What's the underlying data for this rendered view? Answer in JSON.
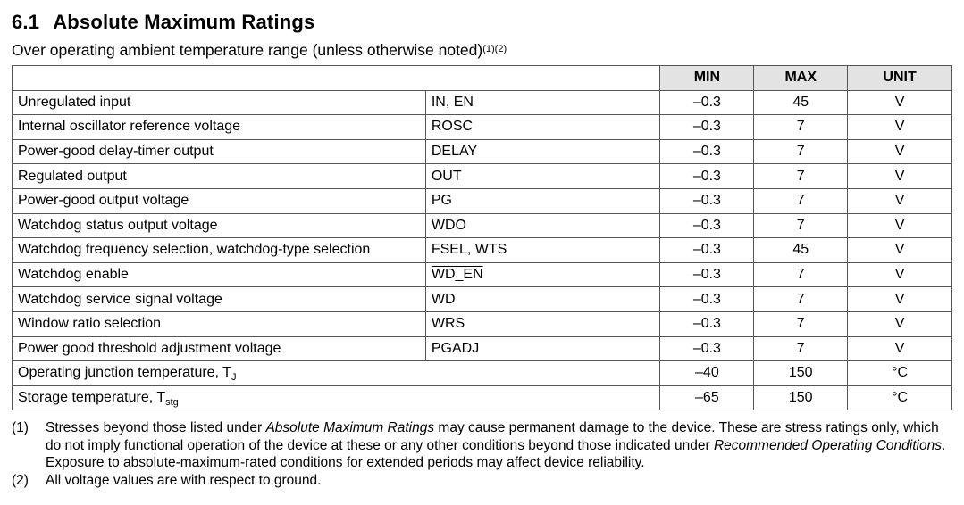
{
  "section": {
    "number": "6.1",
    "title": "Absolute Maximum Ratings",
    "subtitle": "Over operating ambient temperature range (unless otherwise noted)",
    "subtitle_refs": "(1)(2)"
  },
  "table": {
    "headers": {
      "min": "MIN",
      "max": "MAX",
      "unit": "UNIT"
    },
    "rows": [
      {
        "param": "Unregulated input",
        "symbol": "IN, EN",
        "min": "–0.3",
        "max": "45",
        "unit": "V"
      },
      {
        "param": "Internal oscillator reference voltage",
        "symbol": "ROSC",
        "min": "–0.3",
        "max": "7",
        "unit": "V"
      },
      {
        "param": "Power-good delay-timer output",
        "symbol": "DELAY",
        "min": "–0.3",
        "max": "7",
        "unit": "V"
      },
      {
        "param": "Regulated output",
        "symbol": "OUT",
        "min": "–0.3",
        "max": "7",
        "unit": "V"
      },
      {
        "param": "Power-good output voltage",
        "symbol": "PG",
        "min": "–0.3",
        "max": "7",
        "unit": "V"
      },
      {
        "param": "Watchdog status output voltage",
        "symbol": "WDO",
        "min": "–0.3",
        "max": "7",
        "unit": "V"
      },
      {
        "param": "Watchdog frequency selection, watchdog-type selection",
        "symbol": "FSEL, WTS",
        "min": "–0.3",
        "max": "45",
        "unit": "V"
      },
      {
        "param": "Watchdog enable",
        "symbol": "WD_EN",
        "min": "–0.3",
        "max": "7",
        "unit": "V"
      },
      {
        "param": "Watchdog service signal voltage",
        "symbol": "WD",
        "min": "–0.3",
        "max": "7",
        "unit": "V"
      },
      {
        "param": "Window ratio selection",
        "symbol": "WRS",
        "min": "–0.3",
        "max": "7",
        "unit": "V"
      },
      {
        "param": "Power good threshold adjustment voltage",
        "symbol": "PGADJ",
        "min": "–0.3",
        "max": "7",
        "unit": "V"
      }
    ],
    "temp_rows": [
      {
        "param": "Operating junction temperature, T",
        "sub": "J",
        "min": "–40",
        "max": "150",
        "unit": "°C"
      },
      {
        "param": "Storage temperature, T",
        "sub": "stg",
        "min": "–65",
        "max": "150",
        "unit": "°C"
      }
    ]
  },
  "notes": [
    {
      "index": "(1)",
      "t1": "Stresses beyond those listed under ",
      "i1": "Absolute Maximum Ratings",
      "t2": " may cause permanent damage to the device. These are stress ratings only, which do not imply functional operation of the device at these or any other conditions beyond those indicated under ",
      "i2": "Recommended Operating Conditions",
      "t3": ". Exposure to absolute-maximum-rated conditions for extended periods may affect device reliability."
    },
    {
      "index": "(2)",
      "t1": "All voltage values are with respect to ground."
    }
  ]
}
